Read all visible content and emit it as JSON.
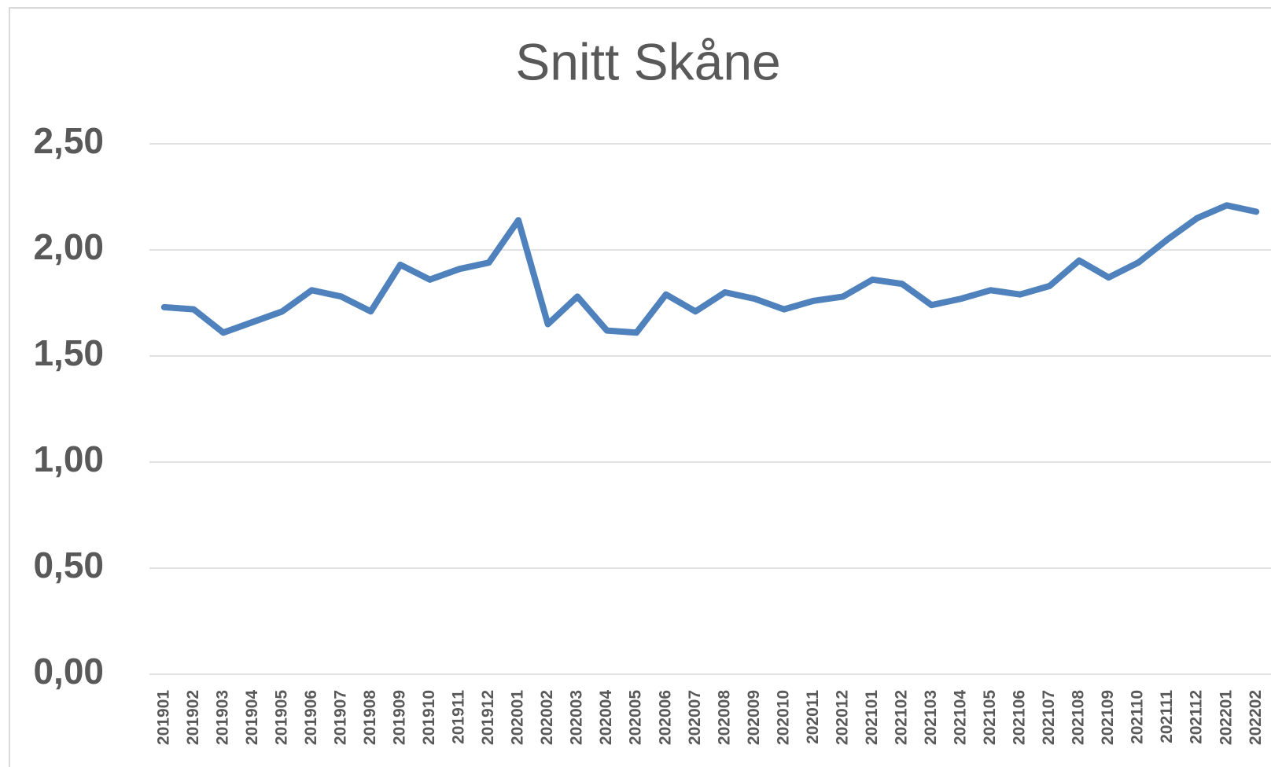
{
  "chart_data": {
    "type": "line",
    "title": "Snitt Skåne",
    "categories": [
      "201901",
      "201902",
      "201903",
      "201904",
      "201905",
      "201906",
      "201907",
      "201908",
      "201909",
      "201910",
      "201911",
      "201912",
      "202001",
      "202002",
      "202003",
      "202004",
      "202005",
      "202006",
      "202007",
      "202008",
      "202009",
      "202010",
      "202011",
      "202012",
      "202101",
      "202102",
      "202103",
      "202104",
      "202105",
      "202106",
      "202107",
      "202108",
      "202109",
      "202110",
      "202111",
      "202112",
      "202201",
      "202202"
    ],
    "values": [
      1.73,
      1.72,
      1.61,
      1.66,
      1.71,
      1.81,
      1.78,
      1.71,
      1.93,
      1.86,
      1.91,
      1.94,
      2.14,
      1.65,
      1.78,
      1.62,
      1.61,
      1.79,
      1.71,
      1.8,
      1.77,
      1.72,
      1.76,
      1.78,
      1.86,
      1.84,
      1.74,
      1.77,
      1.81,
      1.79,
      1.83,
      1.95,
      1.87,
      1.94,
      2.05,
      2.15,
      2.21,
      2.18
    ],
    "color": "#4f81bd",
    "ylim": [
      0,
      2.5
    ],
    "yticks": [
      {
        "value": 0,
        "label": "0,00"
      },
      {
        "value": 0.5,
        "label": "0,50"
      },
      {
        "value": 1,
        "label": "1,00"
      },
      {
        "value": 1.5,
        "label": "1,50"
      },
      {
        "value": 2,
        "label": "2,00"
      },
      {
        "value": 2.5,
        "label": "2,50"
      }
    ],
    "grid": true
  }
}
